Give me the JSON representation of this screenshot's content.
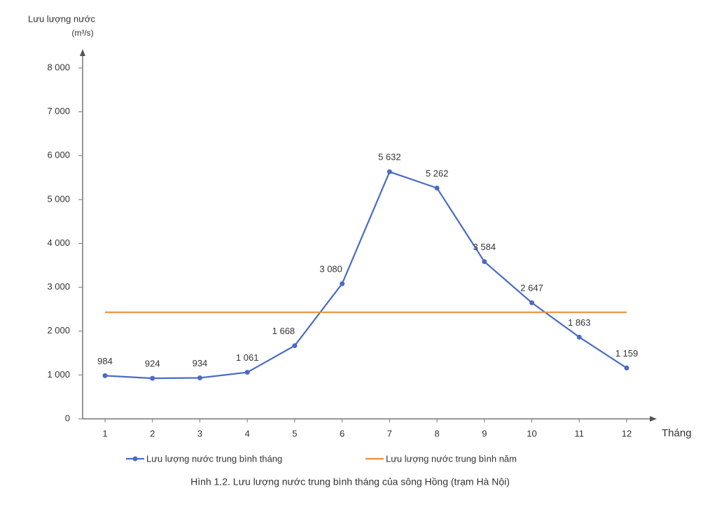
{
  "chart_data": {
    "type": "line",
    "y_label": "Lưu lượng nước",
    "y_unit": "(m³/s)",
    "x_label": "Tháng",
    "caption": "Hình 1.2. Lưu lượng nước trung bình tháng của sông Hồng (trạm Hà Nội)",
    "categories": [
      "1",
      "2",
      "3",
      "4",
      "5",
      "6",
      "7",
      "8",
      "9",
      "10",
      "11",
      "12"
    ],
    "series": [
      {
        "name": "Lưu lượng nước trung bình tháng",
        "color": "#4a6cc4",
        "markers": true,
        "values": [
          984,
          924,
          934,
          1061,
          1668,
          3080,
          5632,
          5262,
          3584,
          2647,
          1863,
          1159
        ],
        "value_labels": [
          "984",
          "924",
          "934",
          "1 061",
          "1 668",
          "3 080",
          "5 632",
          "5 262",
          "3 584",
          "2 647",
          "1 863",
          "1 159"
        ]
      },
      {
        "name": "Lưu lượng nước trung bình năm",
        "color": "#f0913a",
        "markers": false,
        "values": [
          2430,
          2430,
          2430,
          2430,
          2430,
          2430,
          2430,
          2430,
          2430,
          2430,
          2430,
          2430
        ]
      }
    ],
    "ylim": [
      0,
      8000
    ],
    "yticks": [
      0,
      {
        "value": 1000,
        "label": "1 000"
      },
      {
        "value": 2000,
        "label": "2 000"
      },
      {
        "value": 3000,
        "label": "3 000"
      },
      {
        "value": 4000,
        "label": "4 000"
      },
      {
        "value": 5000,
        "label": "5 000"
      },
      {
        "value": 6000,
        "label": "6 000"
      },
      {
        "value": 7000,
        "label": "7 000"
      },
      {
        "value": 8000,
        "label": "8 000"
      }
    ]
  }
}
